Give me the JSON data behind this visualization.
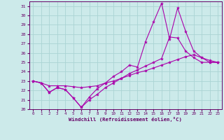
{
  "background_color": "#cceaea",
  "grid_color": "#aad4d4",
  "line_color": "#aa00aa",
  "spine_color": "#660066",
  "xlim": [
    -0.5,
    23.5
  ],
  "ylim": [
    20,
    31.5
  ],
  "yticks": [
    20,
    21,
    22,
    23,
    24,
    25,
    26,
    27,
    28,
    29,
    30,
    31
  ],
  "xticks": [
    0,
    1,
    2,
    3,
    4,
    5,
    6,
    7,
    8,
    9,
    10,
    11,
    12,
    13,
    14,
    15,
    16,
    17,
    18,
    19,
    20,
    21,
    22,
    23
  ],
  "xlabel": "Windchill (Refroidissement éolien,°C)",
  "series1_x": [
    0,
    1,
    2,
    3,
    4,
    5,
    6,
    7,
    8,
    9,
    10,
    11,
    12,
    13,
    14,
    15,
    16,
    17,
    18,
    19,
    20,
    21,
    22,
    23
  ],
  "series1_y": [
    23.0,
    22.8,
    21.8,
    22.3,
    22.1,
    21.2,
    20.2,
    21.0,
    21.6,
    22.3,
    22.8,
    23.3,
    23.8,
    24.2,
    24.6,
    25.0,
    25.4,
    27.7,
    27.6,
    26.2,
    25.5,
    25.0,
    25.0,
    25.0
  ],
  "series2_x": [
    0,
    1,
    2,
    3,
    4,
    5,
    6,
    7,
    8,
    9,
    10,
    11,
    12,
    13,
    14,
    15,
    16,
    17,
    18,
    19,
    20,
    21,
    22,
    23
  ],
  "series2_y": [
    23.0,
    22.8,
    21.8,
    22.3,
    22.1,
    21.2,
    20.2,
    21.3,
    22.2,
    22.8,
    23.5,
    24.0,
    24.7,
    24.5,
    27.2,
    29.3,
    31.3,
    27.5,
    30.8,
    28.3,
    26.2,
    25.5,
    25.0,
    25.0
  ],
  "series3_x": [
    0,
    1,
    2,
    3,
    4,
    5,
    6,
    7,
    8,
    9,
    10,
    11,
    12,
    13,
    14,
    15,
    16,
    17,
    18,
    19,
    20,
    21,
    22,
    23
  ],
  "series3_y": [
    23.0,
    22.8,
    22.5,
    22.5,
    22.5,
    22.4,
    22.3,
    22.4,
    22.5,
    22.8,
    23.0,
    23.3,
    23.6,
    23.9,
    24.1,
    24.4,
    24.7,
    25.0,
    25.3,
    25.6,
    25.8,
    25.5,
    25.2,
    25.0
  ]
}
